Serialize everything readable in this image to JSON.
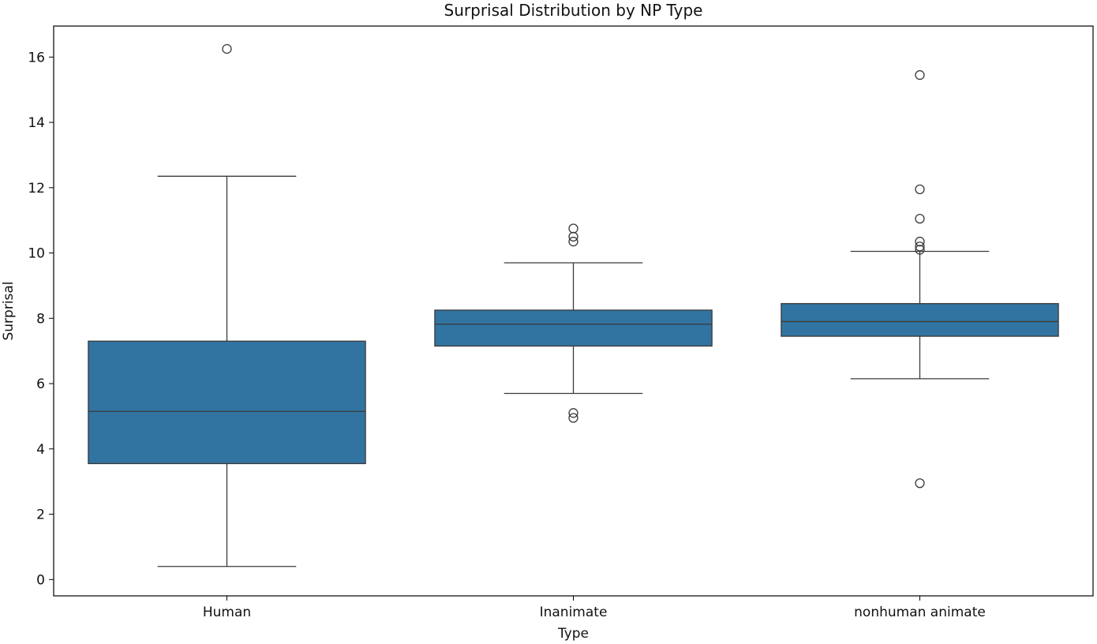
{
  "chart_data": {
    "type": "box",
    "title": "Surprisal Distribution by NP Type",
    "xlabel": "Type",
    "ylabel": "Surprisal",
    "categories": [
      "Human",
      "Inanimate",
      "nonhuman animate"
    ],
    "ylim": [
      -0.5,
      16.95
    ],
    "yticks": [
      0,
      2,
      4,
      6,
      8,
      10,
      12,
      14,
      16
    ],
    "grid": false,
    "legend": "none",
    "box_fill": "#3274a1",
    "box_edge": "#3a3a3a",
    "series": [
      {
        "category": "Human",
        "whisker_low": 0.4,
        "q1": 3.55,
        "median": 5.15,
        "q3": 7.3,
        "whisker_high": 12.35,
        "outliers": [
          16.25
        ]
      },
      {
        "category": "Inanimate",
        "whisker_low": 5.7,
        "q1": 7.15,
        "median": 7.82,
        "q3": 8.25,
        "whisker_high": 9.7,
        "outliers": [
          10.75,
          10.5,
          10.35,
          5.1,
          4.95
        ]
      },
      {
        "category": "nonhuman animate",
        "whisker_low": 6.15,
        "q1": 7.45,
        "median": 7.9,
        "q3": 8.45,
        "whisker_high": 10.05,
        "outliers": [
          15.45,
          11.95,
          11.05,
          10.35,
          10.2,
          10.1,
          2.95
        ]
      }
    ]
  }
}
